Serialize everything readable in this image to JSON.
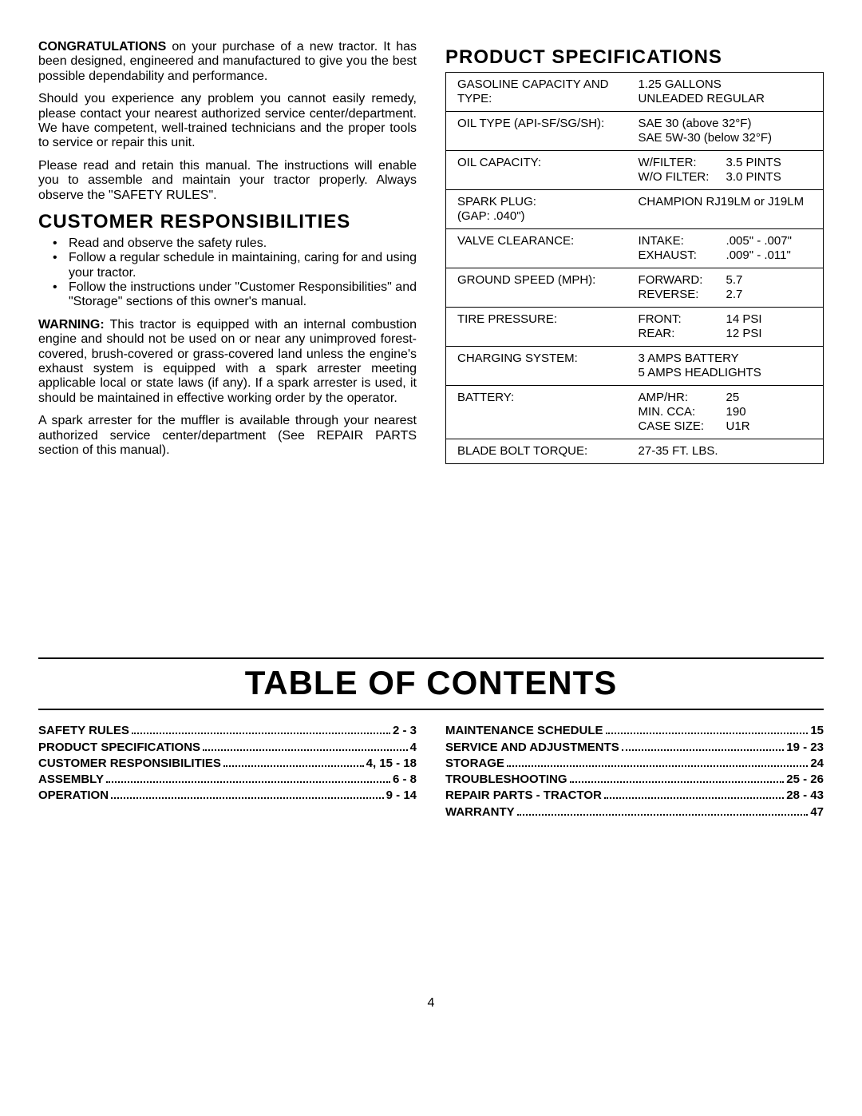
{
  "left": {
    "intro_bold": "CONGRATULATIONS",
    "intro_rest": " on your purchase of a new tractor. It has been designed, engineered and manufactured to give you the best possible dependability and performance.",
    "p2": "Should you experience any problem you cannot easily remedy, please contact your nearest authorized service center/department. We have competent, well-trained technicians and the proper tools to service or repair this unit.",
    "p3": "Please read and retain this manual. The instructions will enable you to assemble and maintain your tractor properly. Always observe the \"SAFETY RULES\".",
    "cust_heading": "CUSTOMER  RESPONSIBILITIES",
    "bullets": [
      "Read and observe the safety rules.",
      "Follow a regular schedule in maintaining, caring for and using your tractor.",
      "Follow the instructions under \"Customer Responsibilities\" and \"Storage\" sections of this owner's manual."
    ],
    "warn_bold": "WARNING:",
    "warn_rest": "  This tractor is equipped with an internal combustion engine and should not be used on or near any unimproved forest-covered, brush-covered or grass-covered land unless the engine's exhaust system is equipped with a spark arrester meeting applicable local or state laws (if any). If a spark arrester is used, it should be maintained in effective working order by the operator.",
    "p_spark": "A spark arrester for the muffler is available through your nearest authorized service center/department (See REPAIR PARTS section of this manual)."
  },
  "right": {
    "heading": "PRODUCT  SPECIFICATIONS",
    "rows": [
      {
        "label": "GASOLINE CAPACITY AND TYPE:",
        "value_lines": [
          "1.25 GALLONS",
          "UNLEADED REGULAR"
        ]
      },
      {
        "label": "OIL TYPE (API-SF/SG/SH):",
        "value_lines": [
          "SAE 30 (above 32°F)",
          "SAE 5W-30 (below 32°F)"
        ]
      },
      {
        "label": "OIL CAPACITY:",
        "value_pairs": [
          {
            "k": "W/FILTER:",
            "v": "3.5 PINTS"
          },
          {
            "k": "W/O FILTER:",
            "v": "3.0 PINTS"
          }
        ]
      },
      {
        "label": "SPARK PLUG:\n(GAP: .040\")",
        "value_lines": [
          "CHAMPION RJ19LM or J19LM"
        ]
      },
      {
        "label": "VALVE CLEARANCE:",
        "value_pairs": [
          {
            "k": "INTAKE:",
            "v": ".005\" - .007\""
          },
          {
            "k": "EXHAUST:",
            "v": ".009\" - .011\""
          }
        ]
      },
      {
        "label": "GROUND SPEED (MPH):",
        "value_pairs": [
          {
            "k": "FORWARD:",
            "v": "5.7"
          },
          {
            "k": "REVERSE:",
            "v": "2.7"
          }
        ]
      },
      {
        "label": "TIRE PRESSURE:",
        "value_pairs": [
          {
            "k": "FRONT:",
            "v": "14 PSI"
          },
          {
            "k": "REAR:",
            "v": "12 PSI"
          }
        ]
      },
      {
        "label": "CHARGING SYSTEM:",
        "value_lines": [
          "3 AMPS BATTERY",
          "5 AMPS HEADLIGHTS"
        ]
      },
      {
        "label": "BATTERY:",
        "value_pairs": [
          {
            "k": "AMP/HR:",
            "v": "25"
          },
          {
            "k": "MIN. CCA:",
            "v": "190"
          },
          {
            "k": "CASE SIZE:",
            "v": "U1R"
          }
        ]
      },
      {
        "label": "BLADE BOLT TORQUE:",
        "value_lines": [
          "27-35 FT. LBS."
        ]
      }
    ]
  },
  "toc": {
    "title": "TABLE OF CONTENTS",
    "left": [
      {
        "label": "SAFETY RULES",
        "page": "2 - 3"
      },
      {
        "label": "PRODUCT SPECIFICATIONS",
        "page": "4"
      },
      {
        "label": "CUSTOMER RESPONSIBILITIES",
        "page": "4, 15 - 18"
      },
      {
        "label": "ASSEMBLY",
        "page": "6 - 8"
      },
      {
        "label": "OPERATION",
        "page": "9 - 14"
      }
    ],
    "right": [
      {
        "label": "MAINTENANCE SCHEDULE",
        "page": "15"
      },
      {
        "label": "SERVICE AND ADJUSTMENTS",
        "page": "19 - 23"
      },
      {
        "label": "STORAGE",
        "page": "24"
      },
      {
        "label": "TROUBLESHOOTING",
        "page": "25 - 26"
      },
      {
        "label": "REPAIR PARTS - TRACTOR",
        "page": "28 - 43"
      },
      {
        "label": "WARRANTY",
        "page": "47"
      }
    ]
  },
  "page_number": "4",
  "style": {
    "body_fontsize": 16,
    "heading_fontsize": 24,
    "toc_title_fontsize": 42,
    "toc_row_fontsize": 15,
    "specs_fontsize": 15,
    "text_color": "#000000",
    "background": "#ffffff",
    "rule_thickness": 2
  }
}
